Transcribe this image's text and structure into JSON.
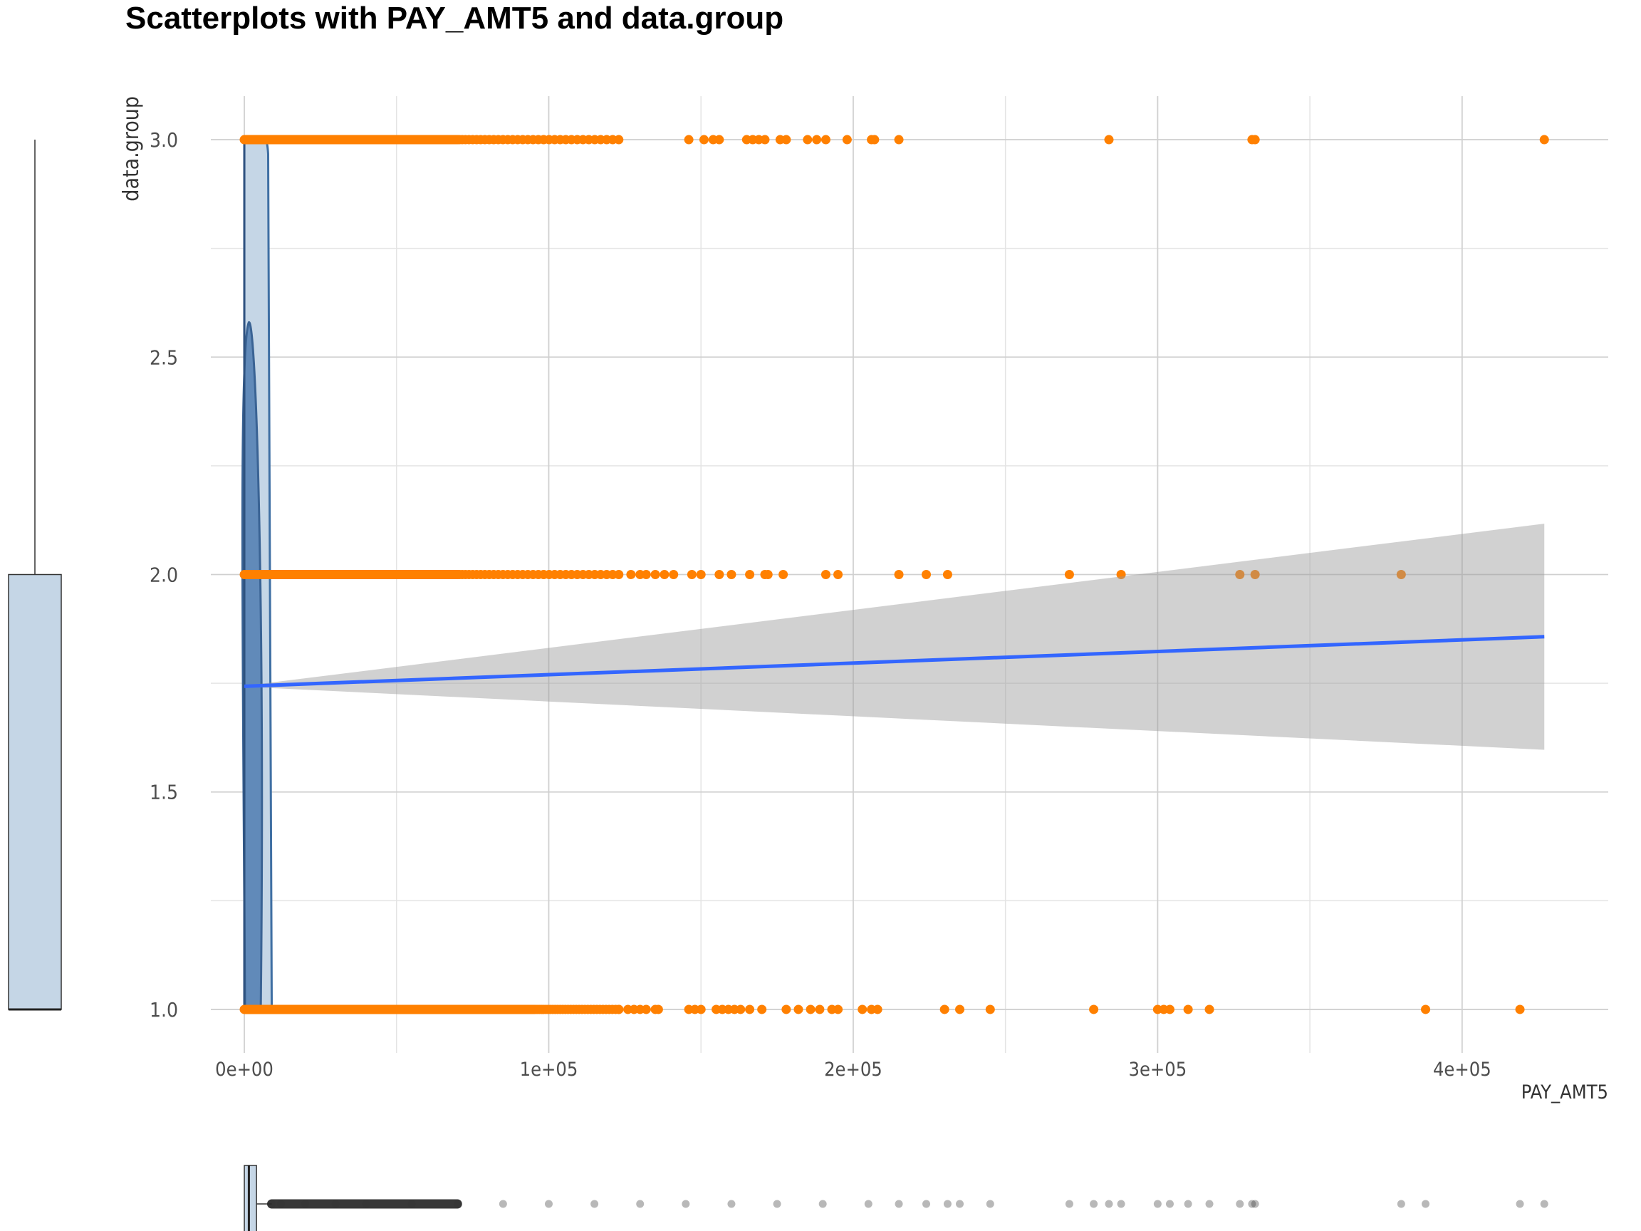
{
  "chart_data": {
    "type": "scatter",
    "title": "Scatterplots with PAY_AMT5 and data.group",
    "xlabel": "PAY_AMT5",
    "ylabel": "data.group",
    "xlim": [
      -11000,
      448000
    ],
    "ylim": [
      0.9,
      3.1
    ],
    "x_ticks": [
      0,
      100000,
      200000,
      300000,
      400000
    ],
    "x_tick_labels": [
      "0e+00",
      "1e+05",
      "2e+05",
      "3e+05",
      "4e+05"
    ],
    "x_minor_ticks": [
      50000,
      150000,
      250000,
      350000
    ],
    "y_ticks": [
      1.0,
      1.5,
      2.0,
      2.5,
      3.0
    ],
    "y_tick_labels": [
      "1.0",
      "1.5",
      "2.0",
      "2.5",
      "3.0"
    ],
    "y_minor_ticks": [
      1.25,
      1.75,
      2.25,
      2.75
    ],
    "grid": true,
    "point_color": "#FF8000",
    "series": [
      {
        "y": 3,
        "x": [
          146000,
          151000,
          154000,
          156000,
          165000,
          167000,
          169000,
          171000,
          176000,
          178000,
          185000,
          188000,
          191000,
          198000,
          206000,
          207000,
          215000,
          284000,
          331000,
          332000,
          427000
        ]
      },
      {
        "y": 2,
        "x": [
          127000,
          130000,
          132000,
          135000,
          138000,
          141000,
          147000,
          150000,
          156000,
          160000,
          166000,
          171000,
          172000,
          177000,
          191000,
          195000,
          215000,
          224000,
          231000,
          271000,
          288000,
          327000,
          332000,
          380000
        ]
      },
      {
        "y": 1,
        "x": [
          123000,
          126000,
          128000,
          130000,
          132000,
          135000,
          136000,
          146000,
          148000,
          150000,
          155000,
          157000,
          159000,
          161000,
          163000,
          166000,
          170000,
          178000,
          182000,
          186000,
          189000,
          193000,
          195000,
          203000,
          206000,
          208000,
          230000,
          235000,
          245000,
          279000,
          300000,
          302000,
          304000,
          310000,
          317000,
          388000,
          419000
        ]
      }
    ],
    "dense_ranges": [
      {
        "y": 3,
        "x": [
          0,
          70000
        ]
      },
      {
        "y": 2,
        "x": [
          0,
          70000
        ]
      },
      {
        "y": 1,
        "x": [
          0,
          95000
        ]
      }
    ],
    "regression": {
      "x": [
        0,
        427000
      ],
      "y": [
        1.743,
        1.857
      ],
      "ci_lower": [
        1.742,
        1.597
      ],
      "ci_upper": [
        1.744,
        2.117
      ],
      "line_color": "#3366FF",
      "band_color": "#999999"
    },
    "density_overlay": {
      "fill": "#4F7CB0",
      "peak_x": 1500,
      "peak_y": 2.58
    },
    "x_boxplot": {
      "min": 0,
      "q1": 1000,
      "median": 1500,
      "q3": 4000,
      "whisker_high": 9000,
      "fill": "#C5D6E6",
      "outliers": [
        9000,
        12000,
        20000,
        30000,
        40000,
        55000,
        70000,
        85000,
        100000,
        115000,
        130000,
        145000,
        160000,
        175000,
        190000,
        205000,
        215000,
        224000,
        231000,
        235000,
        245000,
        271000,
        279000,
        284000,
        288000,
        300000,
        304000,
        310000,
        317000,
        327000,
        331000,
        332000,
        380000,
        388000,
        419000,
        427000
      ]
    },
    "y_boxplot": {
      "min": 1,
      "q1": 1,
      "median": 1,
      "q3": 2,
      "max": 3,
      "fill": "#C5D6E6"
    }
  }
}
